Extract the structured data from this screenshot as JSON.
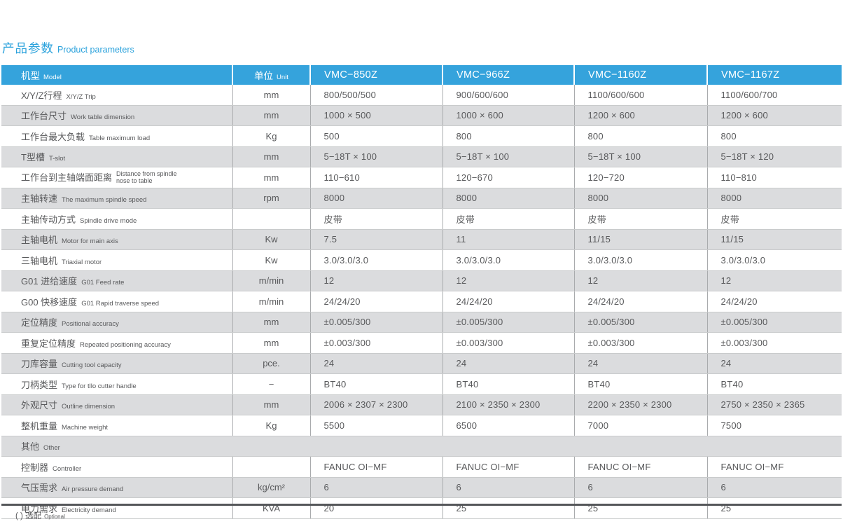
{
  "title": {
    "zh": "产品参数",
    "en": "Product parameters"
  },
  "footnote": {
    "zh": "( ) 选配",
    "en": "Optional"
  },
  "table": {
    "header": {
      "model_zh": "机型",
      "model_en": "Model",
      "unit_zh": "单位",
      "unit_en": "Unit",
      "models": [
        "VMC−850Z",
        "VMC−966Z",
        "VMC−1160Z",
        "VMC−1167Z"
      ]
    },
    "rows": [
      {
        "zh": "X/Y/Z行程",
        "en": "X/Y/Z Trip",
        "unit": "mm",
        "values": [
          "800/500/500",
          "900/600/600",
          "1100/600/600",
          "1100/600/700"
        ],
        "shaded": false
      },
      {
        "zh": "工作台尺寸",
        "en": "Work table dimension",
        "unit": "mm",
        "values": [
          "1000 × 500",
          "1000 × 600",
          "1200 × 600",
          "1200 × 600"
        ],
        "shaded": true
      },
      {
        "zh": "工作台最大负载",
        "en": "Table maximum load",
        "unit": "Kg",
        "values": [
          "500",
          "800",
          "800",
          "800"
        ],
        "shaded": false
      },
      {
        "zh": "T型槽",
        "en": "T-slot",
        "unit": "mm",
        "values": [
          "5−18T × 100",
          "5−18T × 100",
          "5−18T × 100",
          "5−18T × 120"
        ],
        "shaded": true
      },
      {
        "zh": "工作台到主轴端面距离",
        "en": "Distance from spindle nose to table",
        "unit": "mm",
        "values": [
          "110−610",
          "120−670",
          "120−720",
          "110−810"
        ],
        "shaded": false,
        "wrap": true
      },
      {
        "zh": "主轴转速",
        "en": "The maximum spindle speed",
        "unit": "rpm",
        "values": [
          "8000",
          "8000",
          "8000",
          "8000"
        ],
        "shaded": true
      },
      {
        "zh": "主轴传动方式",
        "en": "Spindle drive mode",
        "unit": "",
        "values": [
          "皮带",
          "皮带",
          "皮带",
          "皮带"
        ],
        "shaded": false
      },
      {
        "zh": "主轴电机",
        "en": "Motor for main axis",
        "unit": "Kw",
        "values": [
          "7.5",
          "11",
          "11/15",
          "11/15"
        ],
        "shaded": true
      },
      {
        "zh": "三轴电机",
        "en": "Triaxial motor",
        "unit": "Kw",
        "values": [
          "3.0/3.0/3.0",
          "3.0/3.0/3.0",
          "3.0/3.0/3.0",
          "3.0/3.0/3.0"
        ],
        "shaded": false
      },
      {
        "zh": "G01 进给速度",
        "en": "G01 Feed rate",
        "unit": "m/min",
        "values": [
          "12",
          "12",
          "12",
          "12"
        ],
        "shaded": true
      },
      {
        "zh": "G00 快移速度",
        "en": "G01 Rapid traverse speed",
        "unit": "m/min",
        "values": [
          "24/24/20",
          "24/24/20",
          "24/24/20",
          "24/24/20"
        ],
        "shaded": false
      },
      {
        "zh": "定位精度",
        "en": "Positional accuracy",
        "unit": "mm",
        "values": [
          "±0.005/300",
          "±0.005/300",
          "±0.005/300",
          "±0.005/300"
        ],
        "shaded": true
      },
      {
        "zh": "重复定位精度",
        "en": "Repeated positioning accuracy",
        "unit": "mm",
        "values": [
          "±0.003/300",
          "±0.003/300",
          "±0.003/300",
          "±0.003/300"
        ],
        "shaded": false
      },
      {
        "zh": "刀库容量",
        "en": "Cutting tool capacity",
        "unit": "pce.",
        "values": [
          "24",
          "24",
          "24",
          "24"
        ],
        "shaded": true
      },
      {
        "zh": "刀柄类型",
        "en": "Type for tllo cutter handle",
        "unit": "−",
        "values": [
          "BT40",
          "BT40",
          "BT40",
          "BT40"
        ],
        "shaded": false
      },
      {
        "zh": "外观尺寸",
        "en": "Outline dimension",
        "unit": "mm",
        "values": [
          "2006 × 2307 × 2300",
          "2100 × 2350 × 2300",
          "2200 × 2350 × 2300",
          "2750 × 2350 × 2365"
        ],
        "shaded": true
      },
      {
        "zh": "整机重量",
        "en": "Machine weight",
        "unit": "Kg",
        "values": [
          "5500",
          "6500",
          "7000",
          "7500"
        ],
        "shaded": false
      },
      {
        "zh": "其他",
        "en": "Other",
        "section": true,
        "shaded": true
      },
      {
        "zh": "控制器",
        "en": "Controller",
        "unit": "",
        "values": [
          "FANUC OI−MF",
          "FANUC OI−MF",
          "FANUC OI−MF",
          "FANUC OI−MF"
        ],
        "shaded": false
      },
      {
        "zh": "气压需求",
        "en": "Air pressure demand",
        "unit": "kg/cm²",
        "values": [
          "6",
          "6",
          "6",
          "6"
        ],
        "shaded": true
      },
      {
        "zh": "电力需求",
        "en": "Electricity demand",
        "unit": "KVA",
        "values": [
          "20",
          "25",
          "25",
          "25"
        ],
        "shaded": false
      }
    ]
  }
}
